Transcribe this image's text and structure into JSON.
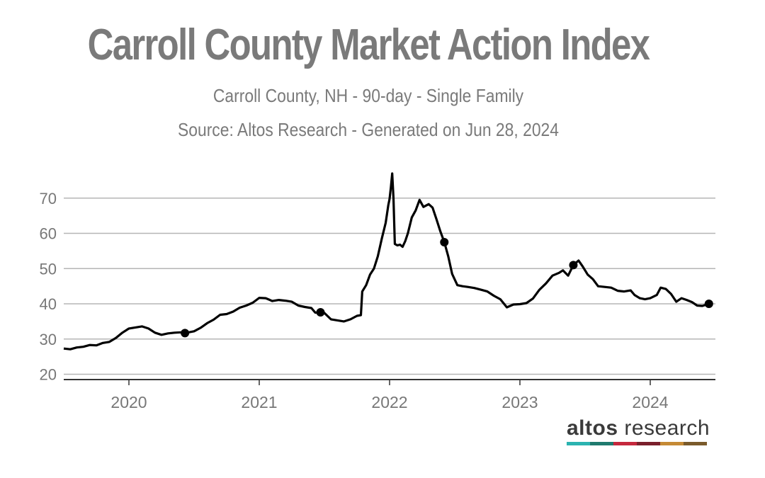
{
  "title": "Carroll County Market Action Index",
  "subtitle": "Carroll County, NH - 90-day - Single Family",
  "source": "Source: Altos Research - Generated on Jun 28, 2024",
  "brand": {
    "name_part1": "altos",
    "name_part2": " research",
    "stripe_colors": [
      "#2bb3b0",
      "#1f7a6e",
      "#c5283d",
      "#7a1f2b",
      "#c58a35",
      "#7a5a2b"
    ]
  },
  "chart_data": {
    "type": "line",
    "title": "Carroll County Market Action Index",
    "xlabel": "",
    "ylabel": "",
    "x_ticks": [
      "2020",
      "2021",
      "2022",
      "2023",
      "2024"
    ],
    "x_tick_values": [
      2020.0,
      2021.0,
      2022.0,
      2023.0,
      2024.0
    ],
    "y_ticks": [
      20,
      30,
      40,
      50,
      60,
      70
    ],
    "xlim": [
      2019.5,
      2024.5
    ],
    "ylim": [
      18.5,
      78
    ],
    "grid": "horizontal",
    "line_color": "#000000",
    "series": [
      {
        "values": [
          [
            2019.5,
            27.3
          ],
          [
            2019.55,
            27.1
          ],
          [
            2019.6,
            27.6
          ],
          [
            2019.65,
            27.8
          ],
          [
            2019.7,
            28.3
          ],
          [
            2019.75,
            28.2
          ],
          [
            2019.8,
            28.9
          ],
          [
            2019.85,
            29.2
          ],
          [
            2019.9,
            30.3
          ],
          [
            2019.95,
            31.8
          ],
          [
            2020.0,
            33.0
          ],
          [
            2020.05,
            33.3
          ],
          [
            2020.1,
            33.6
          ],
          [
            2020.15,
            33.0
          ],
          [
            2020.2,
            31.8
          ],
          [
            2020.25,
            31.2
          ],
          [
            2020.3,
            31.6
          ],
          [
            2020.35,
            31.8
          ],
          [
            2020.4,
            31.9
          ],
          [
            2020.43,
            31.7
          ],
          [
            2020.5,
            32.2
          ],
          [
            2020.55,
            33.2
          ],
          [
            2020.6,
            34.5
          ],
          [
            2020.65,
            35.5
          ],
          [
            2020.7,
            36.9
          ],
          [
            2020.75,
            37.1
          ],
          [
            2020.8,
            37.8
          ],
          [
            2020.85,
            38.9
          ],
          [
            2020.9,
            39.5
          ],
          [
            2020.95,
            40.3
          ],
          [
            2021.0,
            41.7
          ],
          [
            2021.05,
            41.6
          ],
          [
            2021.1,
            40.8
          ],
          [
            2021.15,
            41.1
          ],
          [
            2021.2,
            40.9
          ],
          [
            2021.25,
            40.6
          ],
          [
            2021.3,
            39.5
          ],
          [
            2021.35,
            39.1
          ],
          [
            2021.4,
            38.8
          ],
          [
            2021.43,
            37.5
          ],
          [
            2021.47,
            37.6
          ],
          [
            2021.5,
            37.4
          ],
          [
            2021.55,
            35.6
          ],
          [
            2021.6,
            35.3
          ],
          [
            2021.65,
            35.0
          ],
          [
            2021.7,
            35.6
          ],
          [
            2021.75,
            36.6
          ],
          [
            2021.78,
            36.8
          ],
          [
            2021.79,
            43.5
          ],
          [
            2021.82,
            45.3
          ],
          [
            2021.85,
            48.3
          ],
          [
            2021.88,
            50.0
          ],
          [
            2021.91,
            53.5
          ],
          [
            2021.94,
            58.5
          ],
          [
            2021.97,
            63.0
          ],
          [
            2021.99,
            68.0
          ],
          [
            2022.0,
            69.8
          ],
          [
            2022.01,
            73.0
          ],
          [
            2022.02,
            77.0
          ],
          [
            2022.03,
            70.0
          ],
          [
            2022.04,
            57.0
          ],
          [
            2022.06,
            56.6
          ],
          [
            2022.08,
            56.8
          ],
          [
            2022.1,
            56.2
          ],
          [
            2022.12,
            57.8
          ],
          [
            2022.14,
            60.0
          ],
          [
            2022.17,
            64.5
          ],
          [
            2022.2,
            66.5
          ],
          [
            2022.23,
            69.5
          ],
          [
            2022.26,
            67.5
          ],
          [
            2022.3,
            68.3
          ],
          [
            2022.33,
            67.3
          ],
          [
            2022.36,
            64.0
          ],
          [
            2022.39,
            60.5
          ],
          [
            2022.42,
            57.5
          ],
          [
            2022.45,
            53.5
          ],
          [
            2022.48,
            48.5
          ],
          [
            2022.52,
            45.3
          ],
          [
            2022.56,
            45.0
          ],
          [
            2022.6,
            44.8
          ],
          [
            2022.65,
            44.5
          ],
          [
            2022.7,
            44.0
          ],
          [
            2022.75,
            43.5
          ],
          [
            2022.8,
            42.3
          ],
          [
            2022.85,
            41.3
          ],
          [
            2022.9,
            39.0
          ],
          [
            2022.95,
            39.8
          ],
          [
            2023.0,
            39.9
          ],
          [
            2023.05,
            40.2
          ],
          [
            2023.1,
            41.5
          ],
          [
            2023.15,
            44.0
          ],
          [
            2023.2,
            45.8
          ],
          [
            2023.25,
            48.0
          ],
          [
            2023.3,
            48.8
          ],
          [
            2023.33,
            49.5
          ],
          [
            2023.37,
            48.0
          ],
          [
            2023.41,
            51.0
          ],
          [
            2023.45,
            52.3
          ],
          [
            2023.48,
            50.7
          ],
          [
            2023.52,
            48.3
          ],
          [
            2023.56,
            47.0
          ],
          [
            2023.6,
            45.0
          ],
          [
            2023.65,
            44.8
          ],
          [
            2023.7,
            44.6
          ],
          [
            2023.75,
            43.7
          ],
          [
            2023.8,
            43.5
          ],
          [
            2023.85,
            43.8
          ],
          [
            2023.88,
            42.5
          ],
          [
            2023.92,
            41.6
          ],
          [
            2023.96,
            41.3
          ],
          [
            2024.0,
            41.6
          ],
          [
            2024.05,
            42.5
          ],
          [
            2024.08,
            44.6
          ],
          [
            2024.12,
            44.2
          ],
          [
            2024.16,
            42.8
          ],
          [
            2024.2,
            40.6
          ],
          [
            2024.24,
            41.6
          ],
          [
            2024.28,
            41.1
          ],
          [
            2024.32,
            40.5
          ],
          [
            2024.36,
            39.5
          ],
          [
            2024.4,
            39.4
          ],
          [
            2024.45,
            40.0
          ]
        ]
      }
    ],
    "markers": [
      [
        2020.43,
        31.7
      ],
      [
        2021.47,
        37.6
      ],
      [
        2022.42,
        57.5
      ],
      [
        2023.41,
        51.0
      ],
      [
        2024.45,
        40.0
      ]
    ]
  }
}
